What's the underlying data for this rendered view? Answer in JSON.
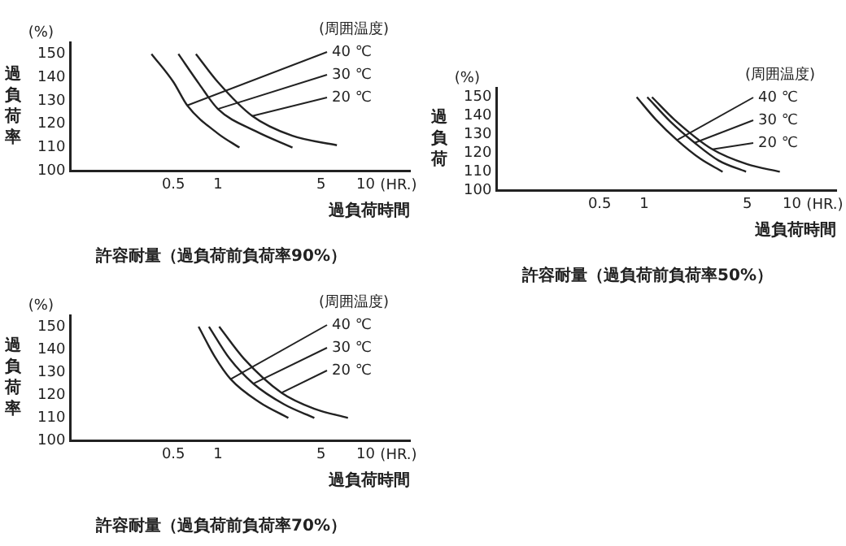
{
  "chart_data": [
    {
      "type": "line",
      "title": "許容耐量（過負荷前負荷率90%）",
      "xlabel": "過負荷時間",
      "ylabel": "過負荷率",
      "legend_title": "(周囲温度)",
      "annotations": [
        "(%)",
        "(HR.)"
      ],
      "log": "x",
      "xlim": [
        0.1,
        20
      ],
      "xticks": [
        0.5,
        1,
        5,
        10
      ],
      "ylim": [
        100,
        155
      ],
      "yticks": [
        100,
        110,
        120,
        130,
        140,
        150
      ],
      "grid": false,
      "marker": "none",
      "line_style": "solid",
      "series": [
        {
          "name": "40 ℃",
          "color": "#222222",
          "x": [
            0.355,
            0.5,
            0.62,
            1.0,
            1.4
          ],
          "values": [
            150,
            138,
            128,
            116,
            110
          ]
        },
        {
          "name": "30 ℃",
          "color": "#222222",
          "x": [
            0.54,
            0.75,
            1.0,
            1.8,
            3.2
          ],
          "values": [
            150,
            137,
            126.5,
            117,
            110
          ]
        },
        {
          "name": "20 ℃",
          "color": "#222222",
          "x": [
            0.71,
            1.0,
            1.71,
            3.2,
            6.4
          ],
          "values": [
            150,
            138,
            123.5,
            115,
            111
          ]
        }
      ]
    },
    {
      "type": "line",
      "title": "許容耐量（過負荷前負荷率50%）",
      "xlabel": "過負荷時間",
      "ylabel": "過負荷",
      "legend_title": "(周囲温度)",
      "annotations": [
        "(%)",
        "(HR.)"
      ],
      "log": "x",
      "xlim": [
        0.1,
        20
      ],
      "xticks": [
        0.5,
        1,
        5,
        10
      ],
      "ylim": [
        100,
        155
      ],
      "yticks": [
        100,
        110,
        120,
        130,
        140,
        150
      ],
      "grid": false,
      "marker": "none",
      "line_style": "solid",
      "series": [
        {
          "name": "40 ℃",
          "color": "#222222",
          "x": [
            0.89,
            1.2,
            1.67,
            2.4,
            3.4
          ],
          "values": [
            150,
            138,
            127,
            117,
            110
          ]
        },
        {
          "name": "30 ℃",
          "color": "#222222",
          "x": [
            1.05,
            1.5,
            2.2,
            3.2,
            4.9
          ],
          "values": [
            150,
            137,
            125.5,
            116,
            110
          ]
        },
        {
          "name": "20 ℃",
          "color": "#222222",
          "x": [
            1.13,
            1.6,
            2.9,
            5,
            8.3
          ],
          "values": [
            150,
            138,
            122,
            114,
            110
          ]
        }
      ]
    },
    {
      "type": "line",
      "title": "許容耐量（過負荷前負荷率70%）",
      "xlabel": "過負荷時間",
      "ylabel": "過負荷率",
      "legend_title": "(周囲温度)",
      "annotations": [
        "(%)",
        "(HR.)"
      ],
      "log": "x",
      "xlim": [
        0.1,
        20
      ],
      "xticks": [
        0.5,
        1,
        5,
        10
      ],
      "ylim": [
        100,
        155
      ],
      "yticks": [
        100,
        110,
        120,
        130,
        140,
        150
      ],
      "grid": false,
      "marker": "none",
      "line_style": "solid",
      "series": [
        {
          "name": "40 ℃",
          "color": "#222222",
          "x": [
            0.74,
            0.95,
            1.22,
            1.9,
            3.0
          ],
          "values": [
            150,
            137,
            127,
            117,
            110
          ]
        },
        {
          "name": "30 ℃",
          "color": "#222222",
          "x": [
            0.87,
            1.2,
            1.74,
            2.8,
            4.5
          ],
          "values": [
            150,
            136,
            125,
            116,
            110
          ]
        },
        {
          "name": "20 ℃",
          "color": "#222222",
          "x": [
            1.02,
            1.5,
            2.7,
            4.5,
            7.6
          ],
          "values": [
            150,
            136,
            121,
            114,
            110
          ]
        }
      ]
    }
  ]
}
